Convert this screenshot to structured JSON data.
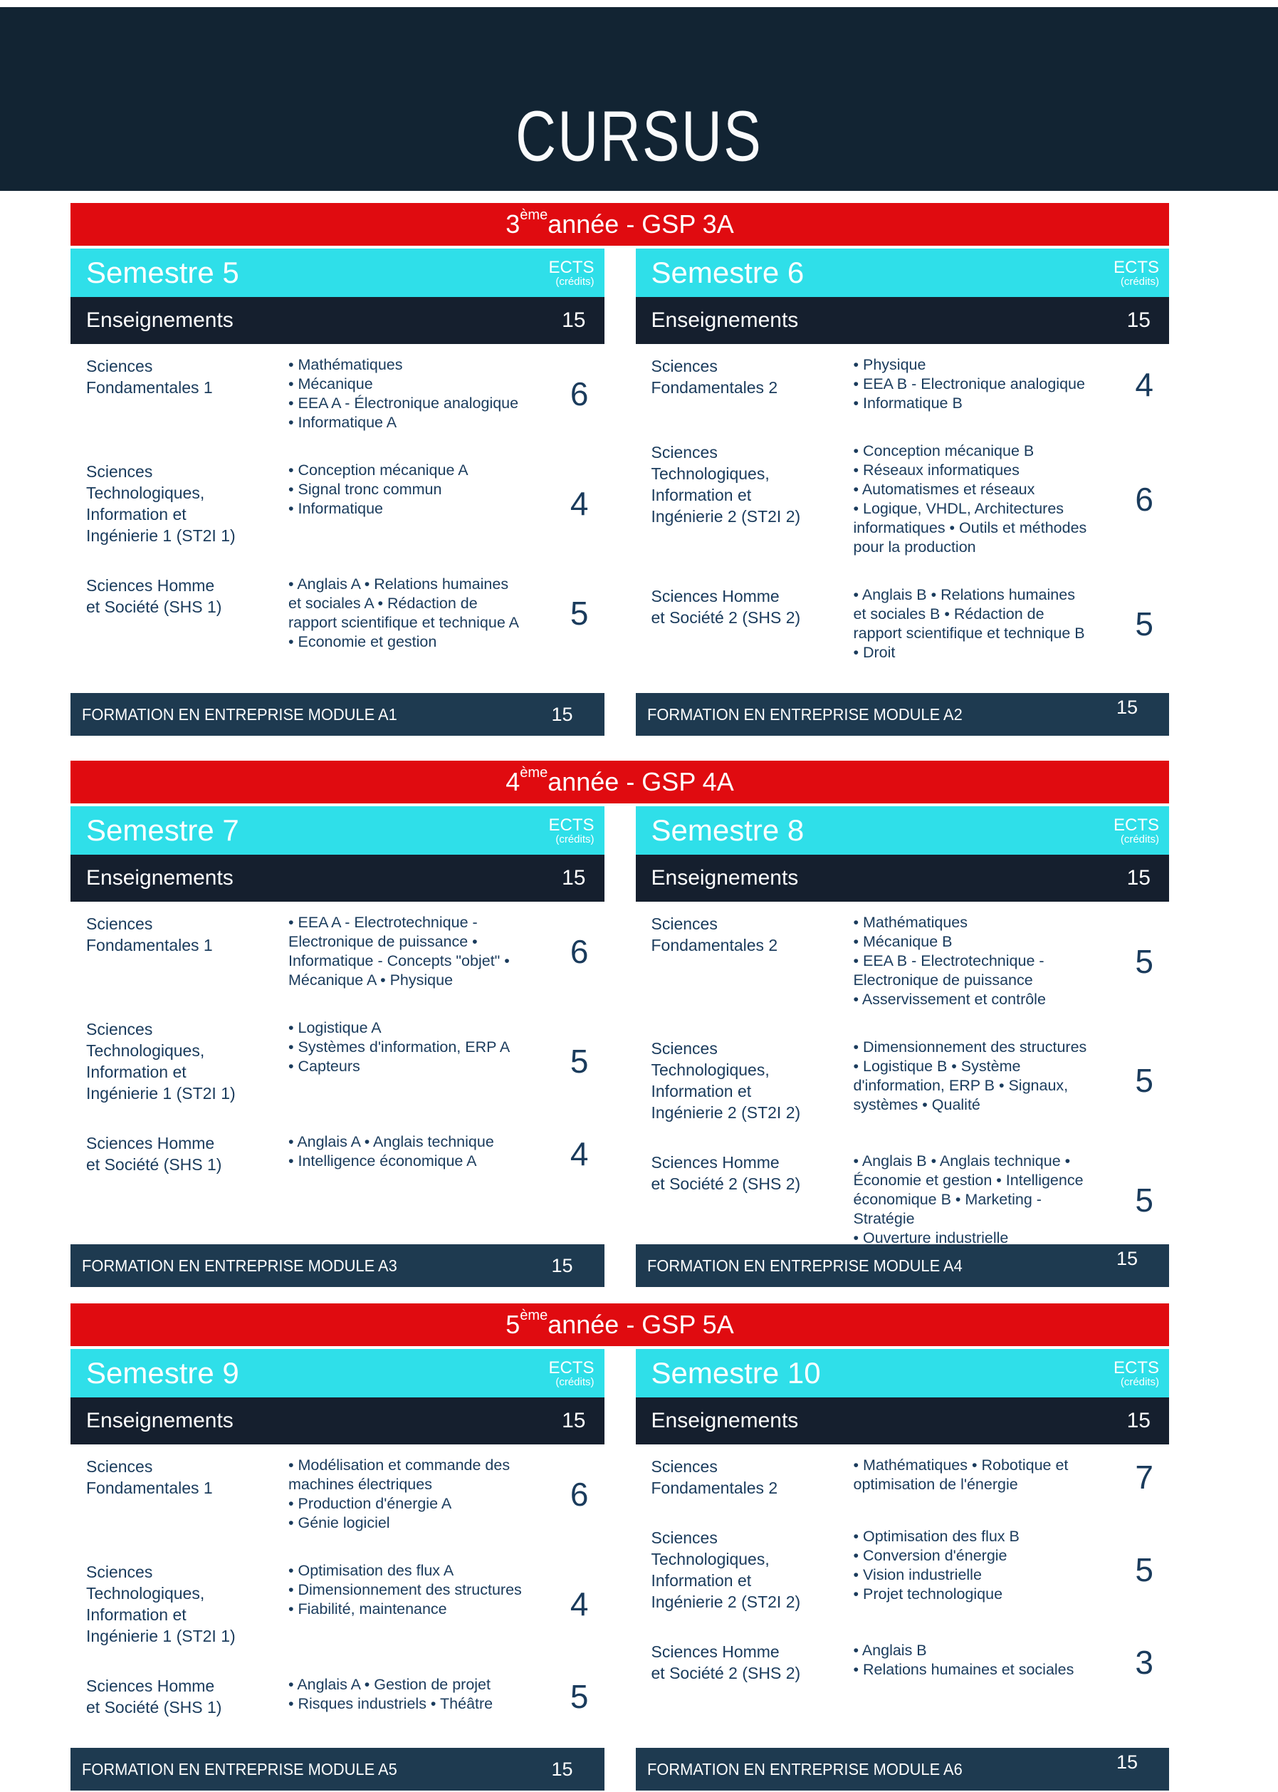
{
  "header": {
    "title": "CURSUS"
  },
  "colors": {
    "header_navy": "#122433",
    "row_navy": "#151f2e",
    "module_navy": "#1e3a50",
    "banner_red": "#e00b10",
    "semester_cyan": "#2fdfe9",
    "body_text": "#1a3b5c"
  },
  "years": [
    {
      "banner": {
        "num": "3",
        "sup": "ème",
        "rest": " année - GSP 3A"
      },
      "semesters": [
        {
          "name": "Semestre 5",
          "ects_label": "ECTS",
          "ects_sublabel": "(crédits)",
          "enseignements": {
            "label": "Enseignements",
            "ects": "15"
          },
          "rows": [
            {
              "category": "Sciences\nFondamentales 1",
              "courses": [
                "• Mathématiques",
                "• Mécanique",
                "• EEA A - Électronique analogique",
                "• Informatique A"
              ],
              "ects": "6"
            },
            {
              "category": "Sciences\nTechnologiques,\nInformation et\nIngénierie 1 (ST2I 1)",
              "courses": [
                "• Conception mécanique A",
                "• Signal tronc commun",
                "• Informatique"
              ],
              "ects": "4"
            },
            {
              "category": "Sciences Homme\net Société (SHS 1)",
              "courses": [
                "• Anglais A • Relations humaines et sociales A • Rédaction de rapport scientifique et technique A • Economie et gestion"
              ],
              "ects": "5"
            }
          ],
          "module": {
            "label": "FORMATION EN ENTREPRISE MODULE A1",
            "ects": "15"
          }
        },
        {
          "name": "Semestre 6",
          "ects_label": "ECTS",
          "ects_sublabel": "(crédits)",
          "enseignements": {
            "label": "Enseignements",
            "ects": "15"
          },
          "rows": [
            {
              "category": "Sciences\nFondamentales 2",
              "courses": [
                "• Physique",
                "• EEA B - Electronique analogique",
                "• Informatique B"
              ],
              "ects": "4"
            },
            {
              "category": "Sciences\nTechnologiques,\nInformation et\nIngénierie 2 (ST2I 2)",
              "courses": [
                "• Conception mécanique B",
                "• Réseaux informatiques",
                "• Automatismes et réseaux",
                "• Logique, VHDL, Architectures informatiques • Outils et méthodes pour la production"
              ],
              "ects": "6"
            },
            {
              "category": "Sciences Homme\net Société 2 (SHS 2)",
              "courses": [
                "• Anglais B • Relations humaines et sociales B • Rédaction de rapport scientifique et technique B • Droit"
              ],
              "ects": "5"
            }
          ],
          "module": {
            "label": "FORMATION EN ENTREPRISE MODULE A2",
            "ects": "15"
          }
        }
      ]
    },
    {
      "banner": {
        "num": "4",
        "sup": "ème",
        "rest": " année - GSP 4A"
      },
      "semesters": [
        {
          "name": "Semestre 7",
          "ects_label": "ECTS",
          "ects_sublabel": "(crédits)",
          "enseignements": {
            "label": "Enseignements",
            "ects": "15"
          },
          "rows": [
            {
              "category": "Sciences\nFondamentales 1",
              "courses": [
                "• EEA A - Electrotechnique - Electronique de puissance • Informatique - Concepts \"objet\" • Mécanique A • Physique"
              ],
              "ects": "6"
            },
            {
              "category": "Sciences\nTechnologiques,\nInformation et\nIngénierie 1 (ST2I 1)",
              "courses": [
                "• Logistique A",
                "• Systèmes d'information, ERP A",
                "• Capteurs"
              ],
              "ects": "5"
            },
            {
              "category": "Sciences Homme\net Société (SHS 1)",
              "courses": [
                "• Anglais A • Anglais technique",
                "• Intelligence économique A"
              ],
              "ects": "4"
            }
          ],
          "module": {
            "label": "FORMATION EN ENTREPRISE MODULE A3",
            "ects": "15"
          }
        },
        {
          "name": "Semestre 8",
          "ects_label": "ECTS",
          "ects_sublabel": "(crédits)",
          "enseignements": {
            "label": "Enseignements",
            "ects": "15"
          },
          "rows": [
            {
              "category": "Sciences\nFondamentales 2",
              "courses": [
                "• Mathématiques",
                "• Mécanique B",
                "• EEA B - Electrotechnique - Electronique de puissance",
                "• Asservissement et contrôle"
              ],
              "ects": "5"
            },
            {
              "category": "Sciences\nTechnologiques,\nInformation et\nIngénierie 2 (ST2I 2)",
              "courses": [
                "• Dimensionnement des structures • Logistique B • Système d'information, ERP B • Signaux, systèmes • Qualité"
              ],
              "ects": "5"
            },
            {
              "category": "Sciences Homme\net Société 2 (SHS 2)",
              "courses": [
                "• Anglais B • Anglais technique • Économie et gestion • Intelligence économique B • Marketing - Stratégie",
                "• Ouverture industrielle"
              ],
              "ects": "5"
            }
          ],
          "module": {
            "label": "FORMATION EN ENTREPRISE MODULE A4",
            "ects": "15"
          }
        }
      ]
    },
    {
      "banner": {
        "num": "5",
        "sup": "ème",
        "rest": " année - GSP 5A"
      },
      "semesters": [
        {
          "name": "Semestre 9",
          "ects_label": "ECTS",
          "ects_sublabel": "(crédits)",
          "enseignements": {
            "label": "Enseignements",
            "ects": "15"
          },
          "rows": [
            {
              "category": "Sciences\nFondamentales 1",
              "courses": [
                "• Modélisation et commande des machines électriques",
                "• Production d'énergie A",
                "• Génie logiciel"
              ],
              "ects": "6"
            },
            {
              "category": "Sciences\nTechnologiques,\nInformation et\nIngénierie 1 (ST2I 1)",
              "courses": [
                "• Optimisation des flux A",
                "• Dimensionnement des structures",
                "• Fiabilité, maintenance"
              ],
              "ects": "4"
            },
            {
              "category": "Sciences Homme\net Société (SHS 1)",
              "courses": [
                "• Anglais A • Gestion de projet",
                "• Risques industriels • Théâtre"
              ],
              "ects": "5"
            }
          ],
          "module": {
            "label": "FORMATION EN ENTREPRISE MODULE A5",
            "ects": "15"
          }
        },
        {
          "name": "Semestre 10",
          "ects_label": "ECTS",
          "ects_sublabel": "(crédits)",
          "enseignements": {
            "label": "Enseignements",
            "ects": "15"
          },
          "rows": [
            {
              "category": "Sciences\nFondamentales 2",
              "courses": [
                "• Mathématiques • Robotique et optimisation de l'énergie"
              ],
              "ects": "7"
            },
            {
              "category": "Sciences\nTechnologiques,\nInformation et\nIngénierie 2 (ST2I 2)",
              "courses": [
                "• Optimisation des flux B",
                "• Conversion d'énergie",
                "• Vision industrielle",
                "• Projet technologique"
              ],
              "ects": "5"
            },
            {
              "category": "Sciences Homme\net Société 2 (SHS 2)",
              "courses": [
                "• Anglais B",
                "• Relations humaines et sociales"
              ],
              "ects": "3"
            }
          ],
          "module": {
            "label": "FORMATION EN ENTREPRISE MODULE A6",
            "ects": "15"
          }
        }
      ]
    }
  ]
}
